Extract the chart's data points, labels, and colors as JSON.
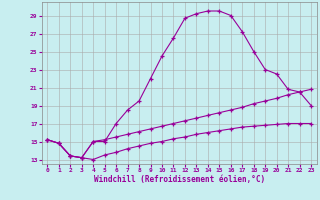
{
  "line1_x": [
    0,
    1,
    2,
    3,
    4,
    5,
    6,
    7,
    8,
    9,
    10,
    11,
    12,
    13,
    14,
    15,
    16,
    17,
    18,
    19,
    20,
    21,
    22,
    23
  ],
  "line1_y": [
    15.2,
    14.8,
    13.4,
    13.2,
    15.0,
    15.0,
    17.0,
    18.5,
    19.5,
    22.0,
    24.5,
    26.5,
    28.7,
    29.2,
    29.5,
    29.5,
    29.0,
    27.2,
    25.0,
    23.0,
    22.5,
    20.8,
    20.5,
    19.0
  ],
  "line2_x": [
    0,
    1,
    2,
    3,
    4,
    5,
    6,
    7,
    8,
    9,
    10,
    11,
    12,
    13,
    14,
    15,
    16,
    17,
    18,
    19,
    20,
    21,
    22,
    23
  ],
  "line2_y": [
    15.2,
    14.8,
    13.4,
    13.2,
    15.0,
    15.2,
    15.5,
    15.8,
    16.1,
    16.4,
    16.7,
    17.0,
    17.3,
    17.6,
    17.9,
    18.2,
    18.5,
    18.8,
    19.2,
    19.5,
    19.8,
    20.2,
    20.5,
    20.8
  ],
  "line3_x": [
    0,
    1,
    2,
    3,
    4,
    5,
    6,
    7,
    8,
    9,
    10,
    11,
    12,
    13,
    14,
    15,
    16,
    17,
    18,
    19,
    20,
    21,
    22,
    23
  ],
  "line3_y": [
    15.2,
    14.8,
    13.4,
    13.2,
    13.0,
    13.5,
    13.8,
    14.2,
    14.5,
    14.8,
    15.0,
    15.3,
    15.5,
    15.8,
    16.0,
    16.2,
    16.4,
    16.6,
    16.7,
    16.8,
    16.9,
    17.0,
    17.0,
    17.0
  ],
  "color": "#990099",
  "bg_color": "#c8eef0",
  "grid_color": "#aaaaaa",
  "xlabel": "Windchill (Refroidissement éolien,°C)",
  "xlim": [
    -0.5,
    23.5
  ],
  "ylim": [
    12.5,
    30.5
  ],
  "yticks": [
    13,
    15,
    17,
    19,
    21,
    23,
    25,
    27,
    29
  ],
  "xticks": [
    0,
    1,
    2,
    3,
    4,
    5,
    6,
    7,
    8,
    9,
    10,
    11,
    12,
    13,
    14,
    15,
    16,
    17,
    18,
    19,
    20,
    21,
    22,
    23
  ],
  "marker": "+"
}
